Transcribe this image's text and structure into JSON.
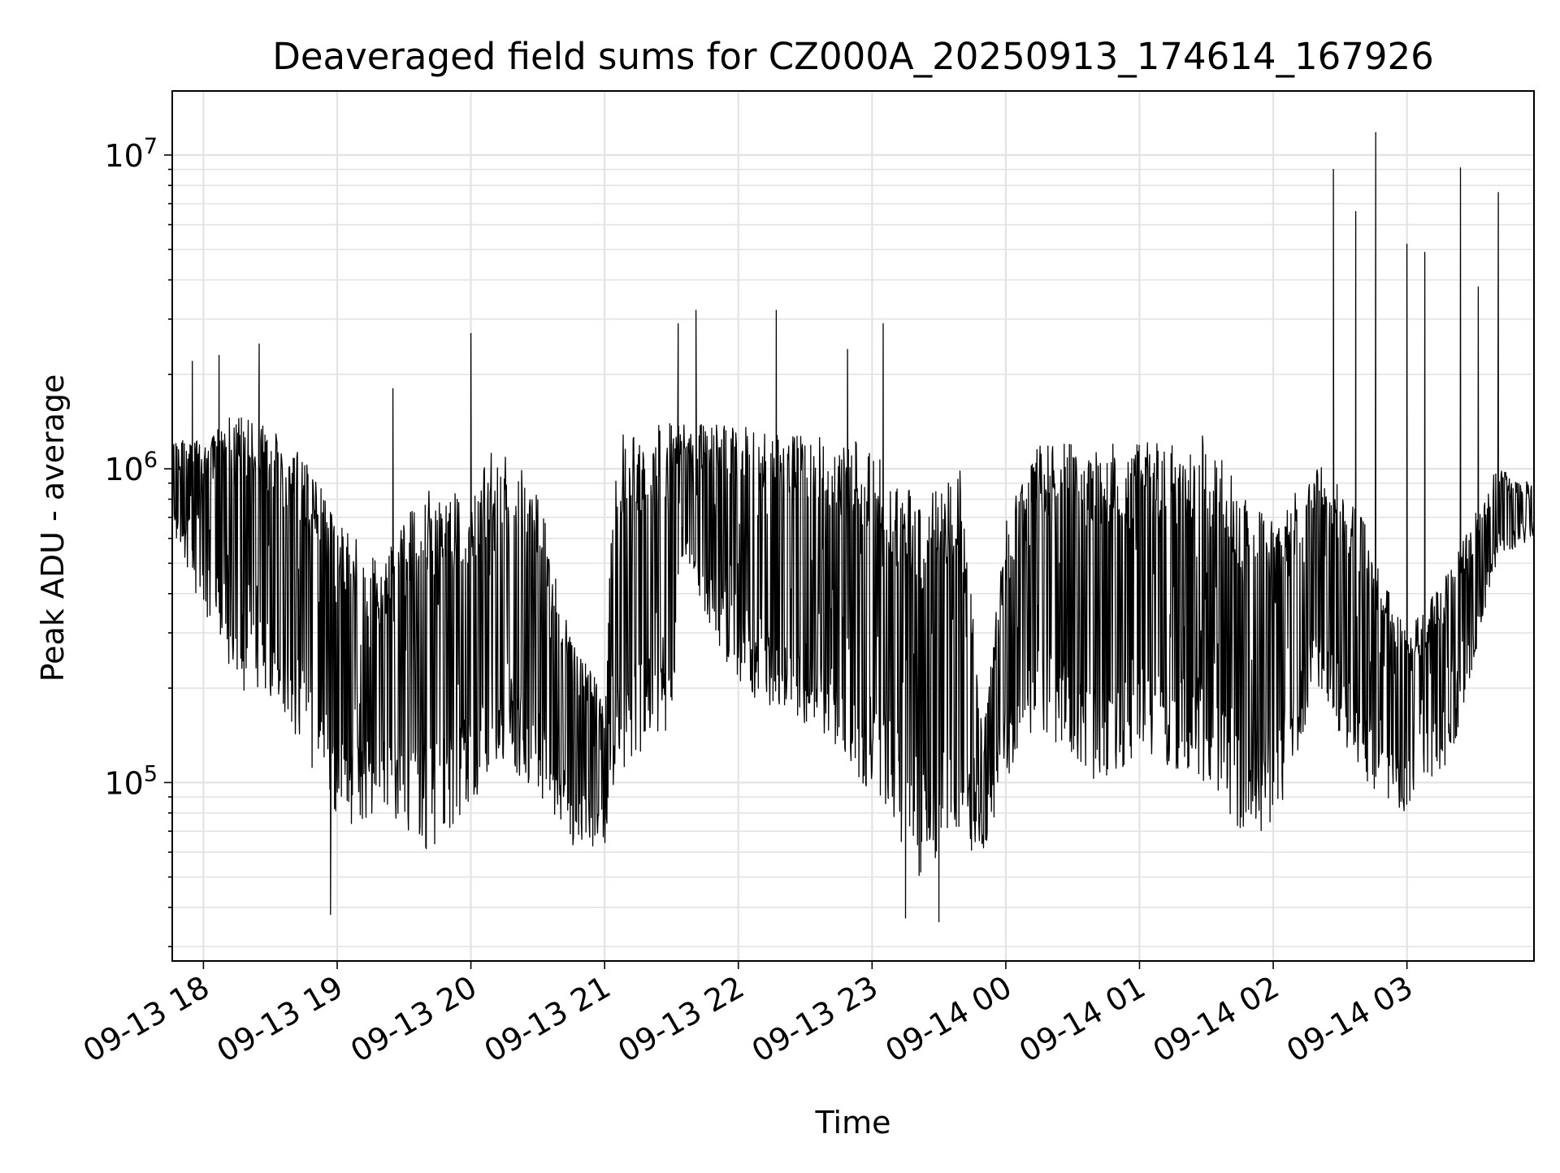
{
  "chart_data": {
    "type": "line",
    "title": "Deaveraged field sums for CZ000A_20250913_174614_167926",
    "xlabel": "Time",
    "ylabel": "Peak ADU - average",
    "yscale": "log",
    "ylim": [
      27000,
      16000000
    ],
    "xlim": [
      "2025-09-13 17:46",
      "2025-09-14 03:57"
    ],
    "grid": true,
    "legend": "none",
    "line_color": "#000000",
    "x_ticks": [
      {
        "label": "09-13 18",
        "time": "2025-09-13 18:00"
      },
      {
        "label": "09-13 19",
        "time": "2025-09-13 19:00"
      },
      {
        "label": "09-13 20",
        "time": "2025-09-13 20:00"
      },
      {
        "label": "09-13 21",
        "time": "2025-09-13 21:00"
      },
      {
        "label": "09-13 22",
        "time": "2025-09-13 22:00"
      },
      {
        "label": "09-13 23",
        "time": "2025-09-13 23:00"
      },
      {
        "label": "09-14 00",
        "time": "2025-09-14 00:00"
      },
      {
        "label": "09-14 01",
        "time": "2025-09-14 01:00"
      },
      {
        "label": "09-14 02",
        "time": "2025-09-14 02:00"
      },
      {
        "label": "09-14 03",
        "time": "2025-09-14 03:00"
      }
    ],
    "y_ticks": [
      {
        "base": "10",
        "exp": "5",
        "value": 100000
      },
      {
        "base": "10",
        "exp": "6",
        "value": 1000000
      },
      {
        "base": "10",
        "exp": "7",
        "value": 10000000
      }
    ],
    "series": [
      {
        "trend": [
          {
            "time": "2025-09-13 17:46",
            "lo": 600000,
            "hi": 1200000
          },
          {
            "time": "2025-09-13 18:00",
            "lo": 350000,
            "hi": 1300000
          },
          {
            "time": "2025-09-13 18:15",
            "lo": 200000,
            "hi": 1500000
          },
          {
            "time": "2025-09-13 18:30",
            "lo": 180000,
            "hi": 1400000
          },
          {
            "time": "2025-09-13 18:45",
            "lo": 130000,
            "hi": 1100000
          },
          {
            "time": "2025-09-13 19:00",
            "lo": 70000,
            "hi": 700000
          },
          {
            "time": "2025-09-13 19:20",
            "lo": 80000,
            "hi": 500000
          },
          {
            "time": "2025-09-13 19:40",
            "lo": 60000,
            "hi": 900000
          },
          {
            "time": "2025-09-13 20:00",
            "lo": 80000,
            "hi": 800000
          },
          {
            "time": "2025-09-13 20:10",
            "lo": 120000,
            "hi": 1200000
          },
          {
            "time": "2025-09-13 20:30",
            "lo": 90000,
            "hi": 900000
          },
          {
            "time": "2025-09-13 20:45",
            "lo": 60000,
            "hi": 300000
          },
          {
            "time": "2025-09-13 21:00",
            "lo": 60000,
            "hi": 200000
          },
          {
            "time": "2025-09-13 21:05",
            "lo": 100000,
            "hi": 1300000
          },
          {
            "time": "2025-09-13 21:30",
            "lo": 150000,
            "hi": 1400000
          },
          {
            "time": "2025-09-13 21:35",
            "lo": 500000,
            "hi": 1400000
          },
          {
            "time": "2025-09-13 22:00",
            "lo": 200000,
            "hi": 1400000
          },
          {
            "time": "2025-09-13 22:30",
            "lo": 150000,
            "hi": 1300000
          },
          {
            "time": "2025-09-13 23:00",
            "lo": 90000,
            "hi": 1200000
          },
          {
            "time": "2025-09-13 23:20",
            "lo": 50000,
            "hi": 800000
          },
          {
            "time": "2025-09-13 23:40",
            "lo": 60000,
            "hi": 1000000
          },
          {
            "time": "2025-09-13 23:50",
            "lo": 60000,
            "hi": 150000
          },
          {
            "time": "2025-09-14 00:00",
            "lo": 100000,
            "hi": 700000
          },
          {
            "time": "2025-09-14 00:15",
            "lo": 150000,
            "hi": 1200000
          },
          {
            "time": "2025-09-14 00:40",
            "lo": 100000,
            "hi": 1200000
          },
          {
            "time": "2025-09-14 01:00",
            "lo": 120000,
            "hi": 1200000
          },
          {
            "time": "2025-09-14 01:30",
            "lo": 100000,
            "hi": 1300000
          },
          {
            "time": "2025-09-14 01:45",
            "lo": 70000,
            "hi": 900000
          },
          {
            "time": "2025-09-14 02:00",
            "lo": 70000,
            "hi": 700000
          },
          {
            "time": "2025-09-14 02:20",
            "lo": 200000,
            "hi": 1100000
          },
          {
            "time": "2025-09-14 02:40",
            "lo": 100000,
            "hi": 700000
          },
          {
            "time": "2025-09-14 03:00",
            "lo": 80000,
            "hi": 300000
          },
          {
            "time": "2025-09-14 03:20",
            "lo": 120000,
            "hi": 500000
          },
          {
            "time": "2025-09-14 03:40",
            "lo": 500000,
            "hi": 1000000
          },
          {
            "time": "2025-09-14 03:57",
            "lo": 600000,
            "hi": 900000
          }
        ],
        "spikes": [
          {
            "time": "2025-09-13 17:55",
            "value": 2200000
          },
          {
            "time": "2025-09-13 18:07",
            "value": 2300000
          },
          {
            "time": "2025-09-13 18:25",
            "value": 2500000
          },
          {
            "time": "2025-09-13 18:57",
            "value": 38000
          },
          {
            "time": "2025-09-13 19:25",
            "value": 1800000
          },
          {
            "time": "2025-09-13 20:00",
            "value": 2700000
          },
          {
            "time": "2025-09-13 21:33",
            "value": 2900000
          },
          {
            "time": "2025-09-13 21:41",
            "value": 3200000
          },
          {
            "time": "2025-09-13 22:17",
            "value": 3200000
          },
          {
            "time": "2025-09-13 22:49",
            "value": 2400000
          },
          {
            "time": "2025-09-13 23:05",
            "value": 2900000
          },
          {
            "time": "2025-09-13 23:15",
            "value": 37000
          },
          {
            "time": "2025-09-13 23:30",
            "value": 36000
          },
          {
            "time": "2025-09-14 02:27",
            "value": 9000000
          },
          {
            "time": "2025-09-14 02:37",
            "value": 6600000
          },
          {
            "time": "2025-09-14 02:46",
            "value": 11800000
          },
          {
            "time": "2025-09-14 03:00",
            "value": 5200000
          },
          {
            "time": "2025-09-14 03:08",
            "value": 4900000
          },
          {
            "time": "2025-09-14 03:24",
            "value": 9100000
          },
          {
            "time": "2025-09-14 03:32",
            "value": 3800000
          },
          {
            "time": "2025-09-14 03:41",
            "value": 7600000
          }
        ]
      }
    ]
  }
}
